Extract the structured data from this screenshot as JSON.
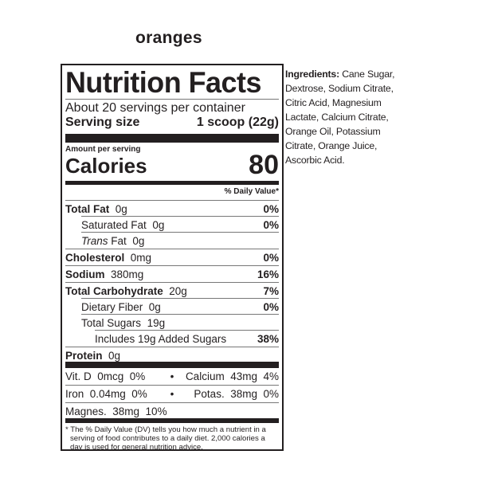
{
  "product": "oranges",
  "label": {
    "title": "Nutrition Facts",
    "servings": "About 20 servings per container",
    "serving_size_label": "Serving size",
    "serving_size_value": "1 scoop (22g)",
    "amount_per_serving": "Amount per serving",
    "calories_label": "Calories",
    "calories_value": "80",
    "dv_header": "% Daily Value*",
    "nutrients": [
      {
        "name": "Total Fat",
        "amount": "0g",
        "dv": "0%",
        "bold": true,
        "indent": 0
      },
      {
        "name": "Saturated Fat",
        "amount": "0g",
        "dv": "0%",
        "bold": false,
        "indent": 1
      },
      {
        "name": "Trans",
        "name_suffix": "Fat",
        "amount": "0g",
        "dv": "",
        "bold": false,
        "indent": 1
      },
      {
        "name": "Cholesterol",
        "amount": "0mg",
        "dv": "0%",
        "bold": true,
        "indent": 0
      },
      {
        "name": "Sodium",
        "amount": "380mg",
        "dv": "16%",
        "bold": true,
        "indent": 0
      },
      {
        "name": "Total Carbohydrate",
        "amount": "20g",
        "dv": "7%",
        "bold": true,
        "indent": 0
      },
      {
        "name": "Dietary Fiber",
        "amount": "0g",
        "dv": "0%",
        "bold": false,
        "indent": 1
      },
      {
        "name": "Total Sugars",
        "amount": "19g",
        "dv": "",
        "bold": false,
        "indent": 1
      },
      {
        "name": "Includes 19g Added Sugars",
        "amount": "",
        "dv": "38%",
        "bold": false,
        "indent": 2
      },
      {
        "name": "Protein",
        "amount": "0g",
        "dv": "",
        "bold": true,
        "indent": 0
      }
    ],
    "vitamins": [
      {
        "left": "Vit. D  0mcg  0%",
        "sep": "•",
        "right": "Calcium  43mg  4%"
      },
      {
        "left": "Iron  0.04mg  0%",
        "sep": "•",
        "right": "Potas.  38mg  0%"
      },
      {
        "left": "Magnes.  38mg  10%",
        "sep": "",
        "right": ""
      }
    ],
    "footnote": "* The % Daily Value (DV) tells you how much a nutrient in a serving of food contributes to a daily diet. 2,000 calories a day is used for general nutrition advice."
  },
  "ingredients": {
    "label": "Ingredients:",
    "text": " Cane Sugar, Dextrose, Sodium Citrate, Citric Acid, Magnesium Lactate, Calcium Citrate, Orange Oil, Potassium Citrate, Orange Juice, Ascorbic Acid."
  }
}
